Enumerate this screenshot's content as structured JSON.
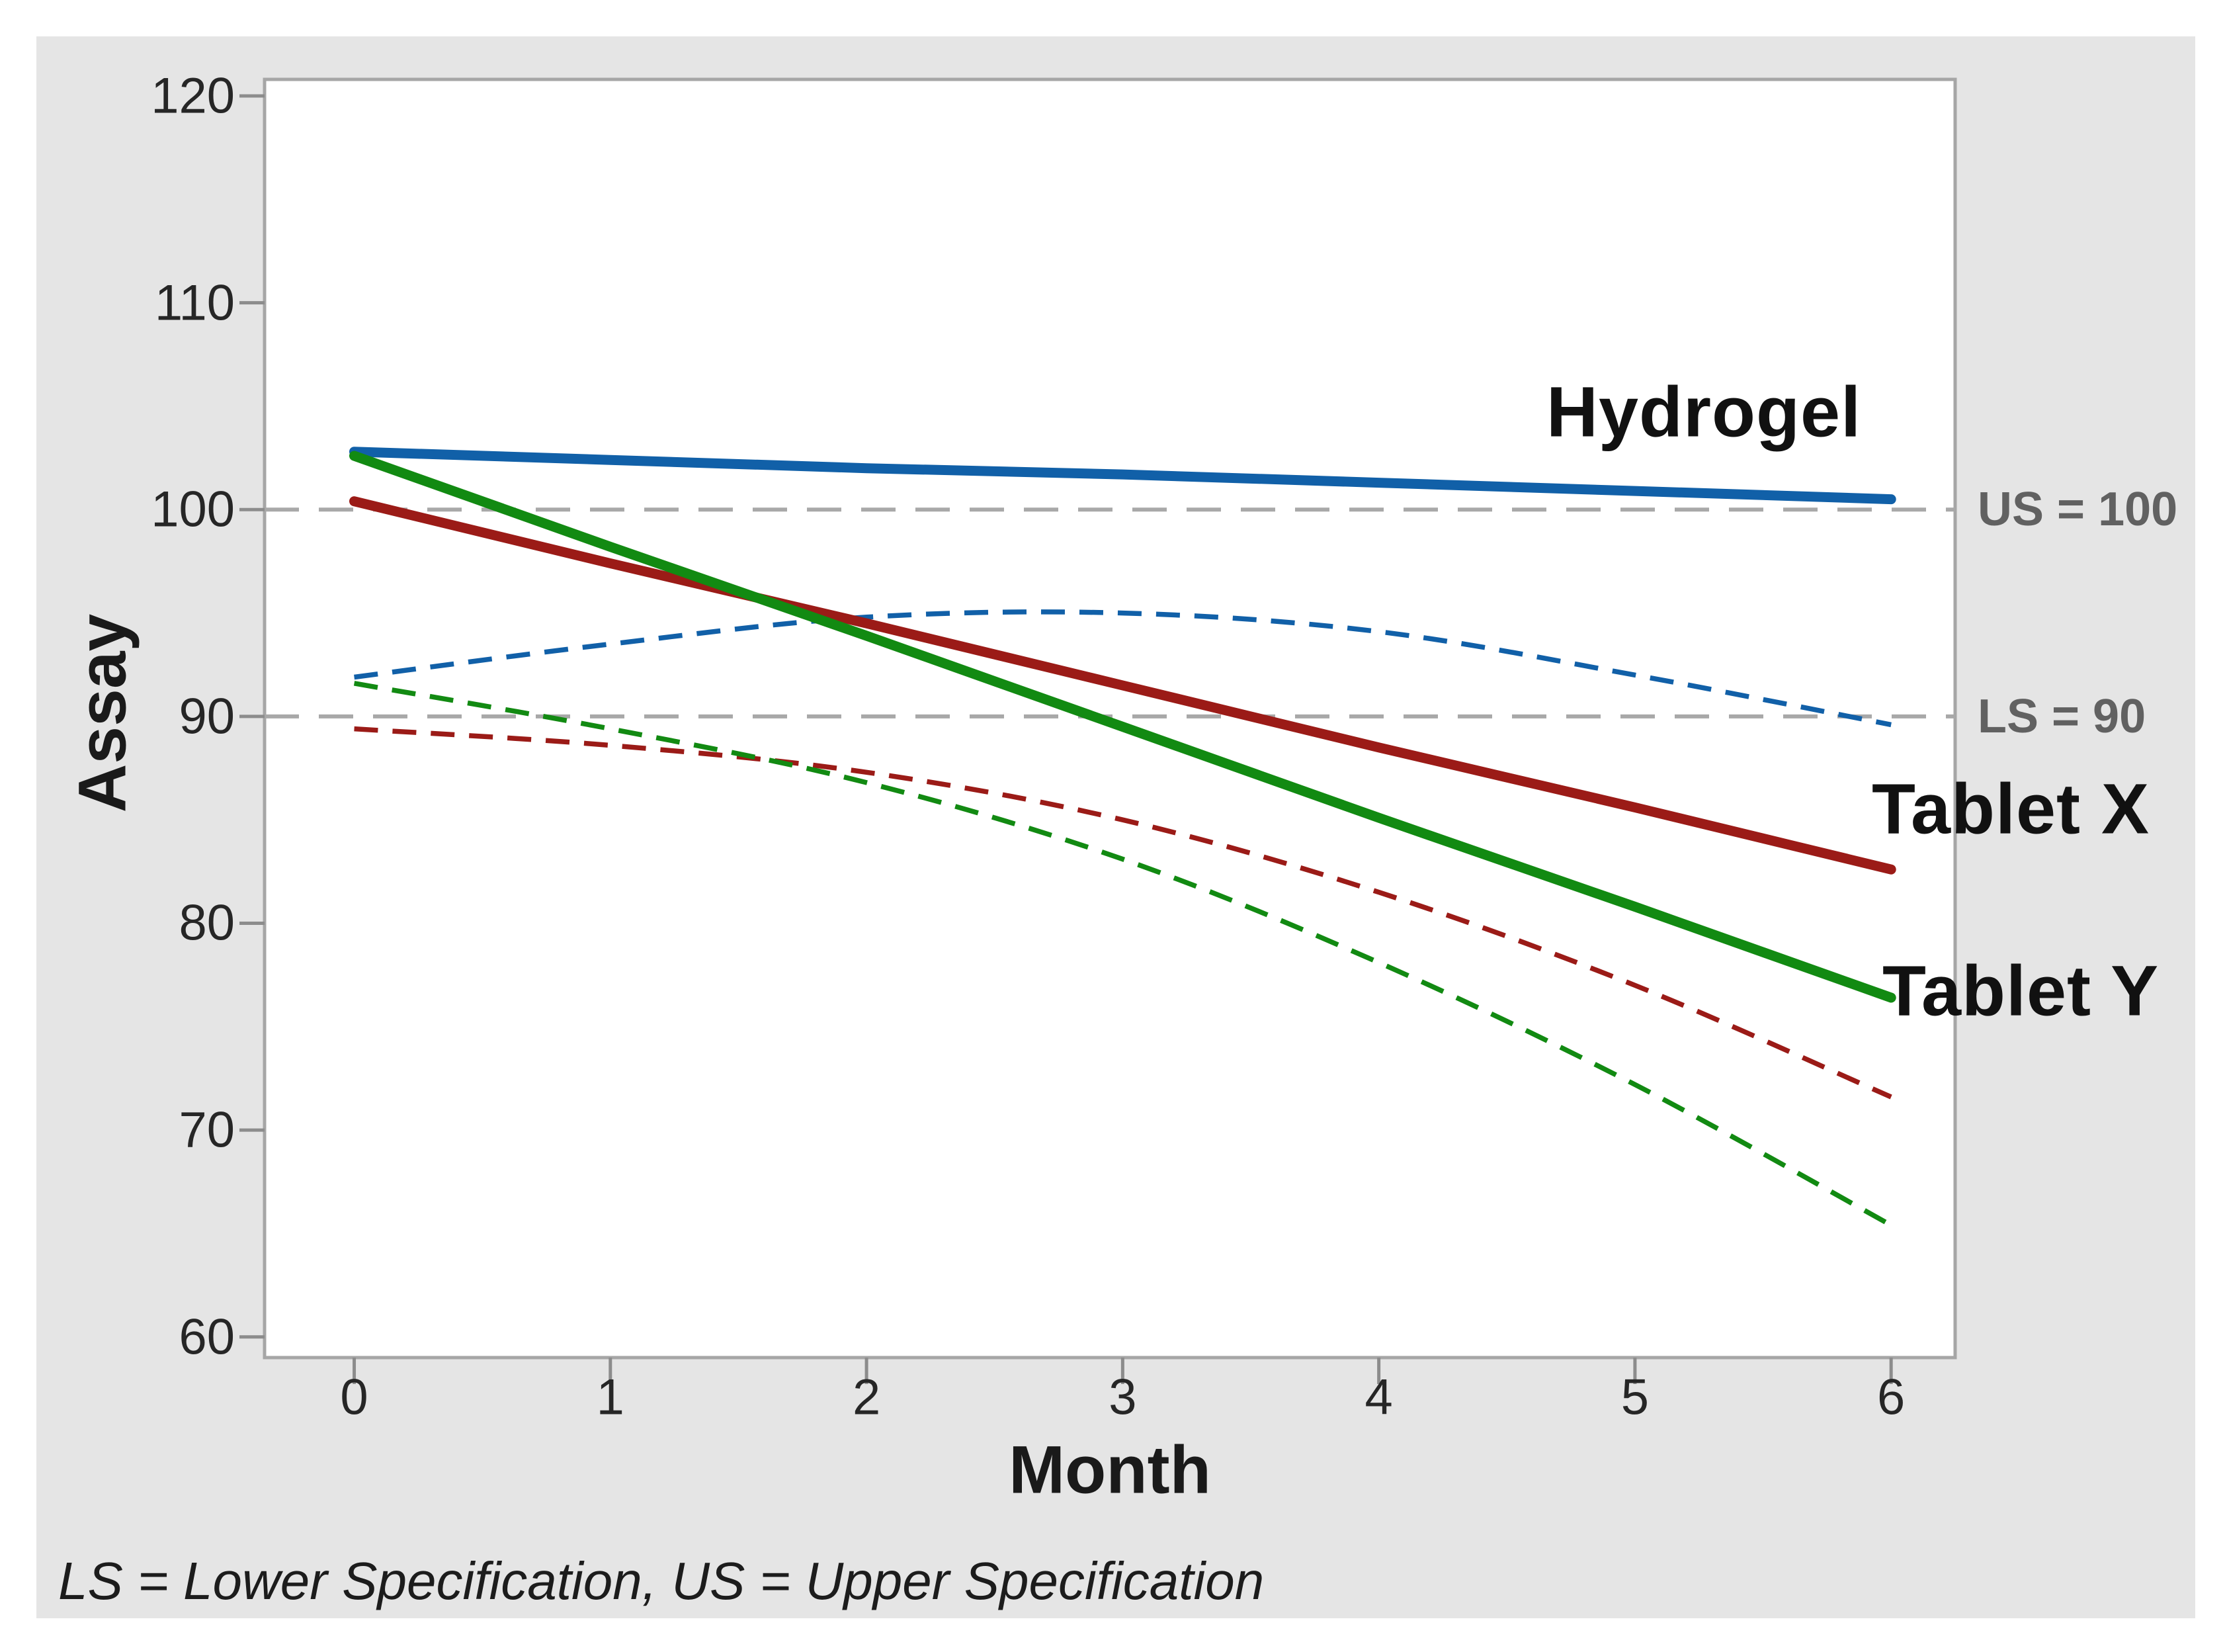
{
  "figure": {
    "footnote": "LS = Lower Specification, US = Upper Specification",
    "background_color": "#e5e5e5",
    "plot_background_color": "#ffffff",
    "plot_border_color": "#a6a6a6"
  },
  "chart_data": {
    "type": "line",
    "title": "",
    "xlabel": "Month",
    "ylabel": "Assay",
    "months": [
      0,
      1,
      2,
      3,
      4,
      5,
      6
    ],
    "x_tick_labels": [
      0,
      1,
      2,
      3,
      4,
      5,
      6
    ],
    "y_tick_labels": [
      120,
      110,
      100,
      90,
      80,
      70,
      60
    ],
    "xlim": [
      -0.35,
      6.25
    ],
    "ylim": [
      59.0,
      120.8
    ],
    "grid": false,
    "legend_position": "labels-at-line-ends-right",
    "reference_lines": [
      {
        "id": "US",
        "label": "US = 100",
        "value": 100,
        "color": "#a8a8a8",
        "style": "dashed"
      },
      {
        "id": "LS",
        "label": "LS = 90",
        "value": 90,
        "color": "#a8a8a8",
        "style": "dashed"
      }
    ],
    "series": [
      {
        "name": "Hydrogel",
        "color": "#1160a8",
        "fit_style": "solid",
        "fit": [
          102.8,
          102.4,
          102.0,
          101.7,
          101.3,
          100.9,
          100.5
        ],
        "lower_bound_style": "dashed",
        "lower_bound": [
          91.9,
          93.5,
          94.8,
          95.0,
          94.1,
          92.0,
          89.6
        ]
      },
      {
        "name": "Tablet X",
        "color": "#9b1b17",
        "fit_style": "solid",
        "fit": [
          100.4,
          97.4,
          94.5,
          91.5,
          88.5,
          85.6,
          82.6
        ],
        "lower_bound_style": "dashed",
        "lower_bound": [
          89.4,
          88.6,
          87.3,
          85.0,
          81.5,
          77.0,
          71.6
        ]
      },
      {
        "name": "Tablet Y",
        "color": "#128a12",
        "fit_style": "solid",
        "fit": [
          102.6,
          98.2,
          93.9,
          89.5,
          85.1,
          80.8,
          76.4
        ],
        "lower_bound_style": "dashed",
        "lower_bound": [
          91.6,
          89.4,
          86.8,
          83.1,
          78.1,
          72.2,
          65.4
        ]
      }
    ]
  }
}
